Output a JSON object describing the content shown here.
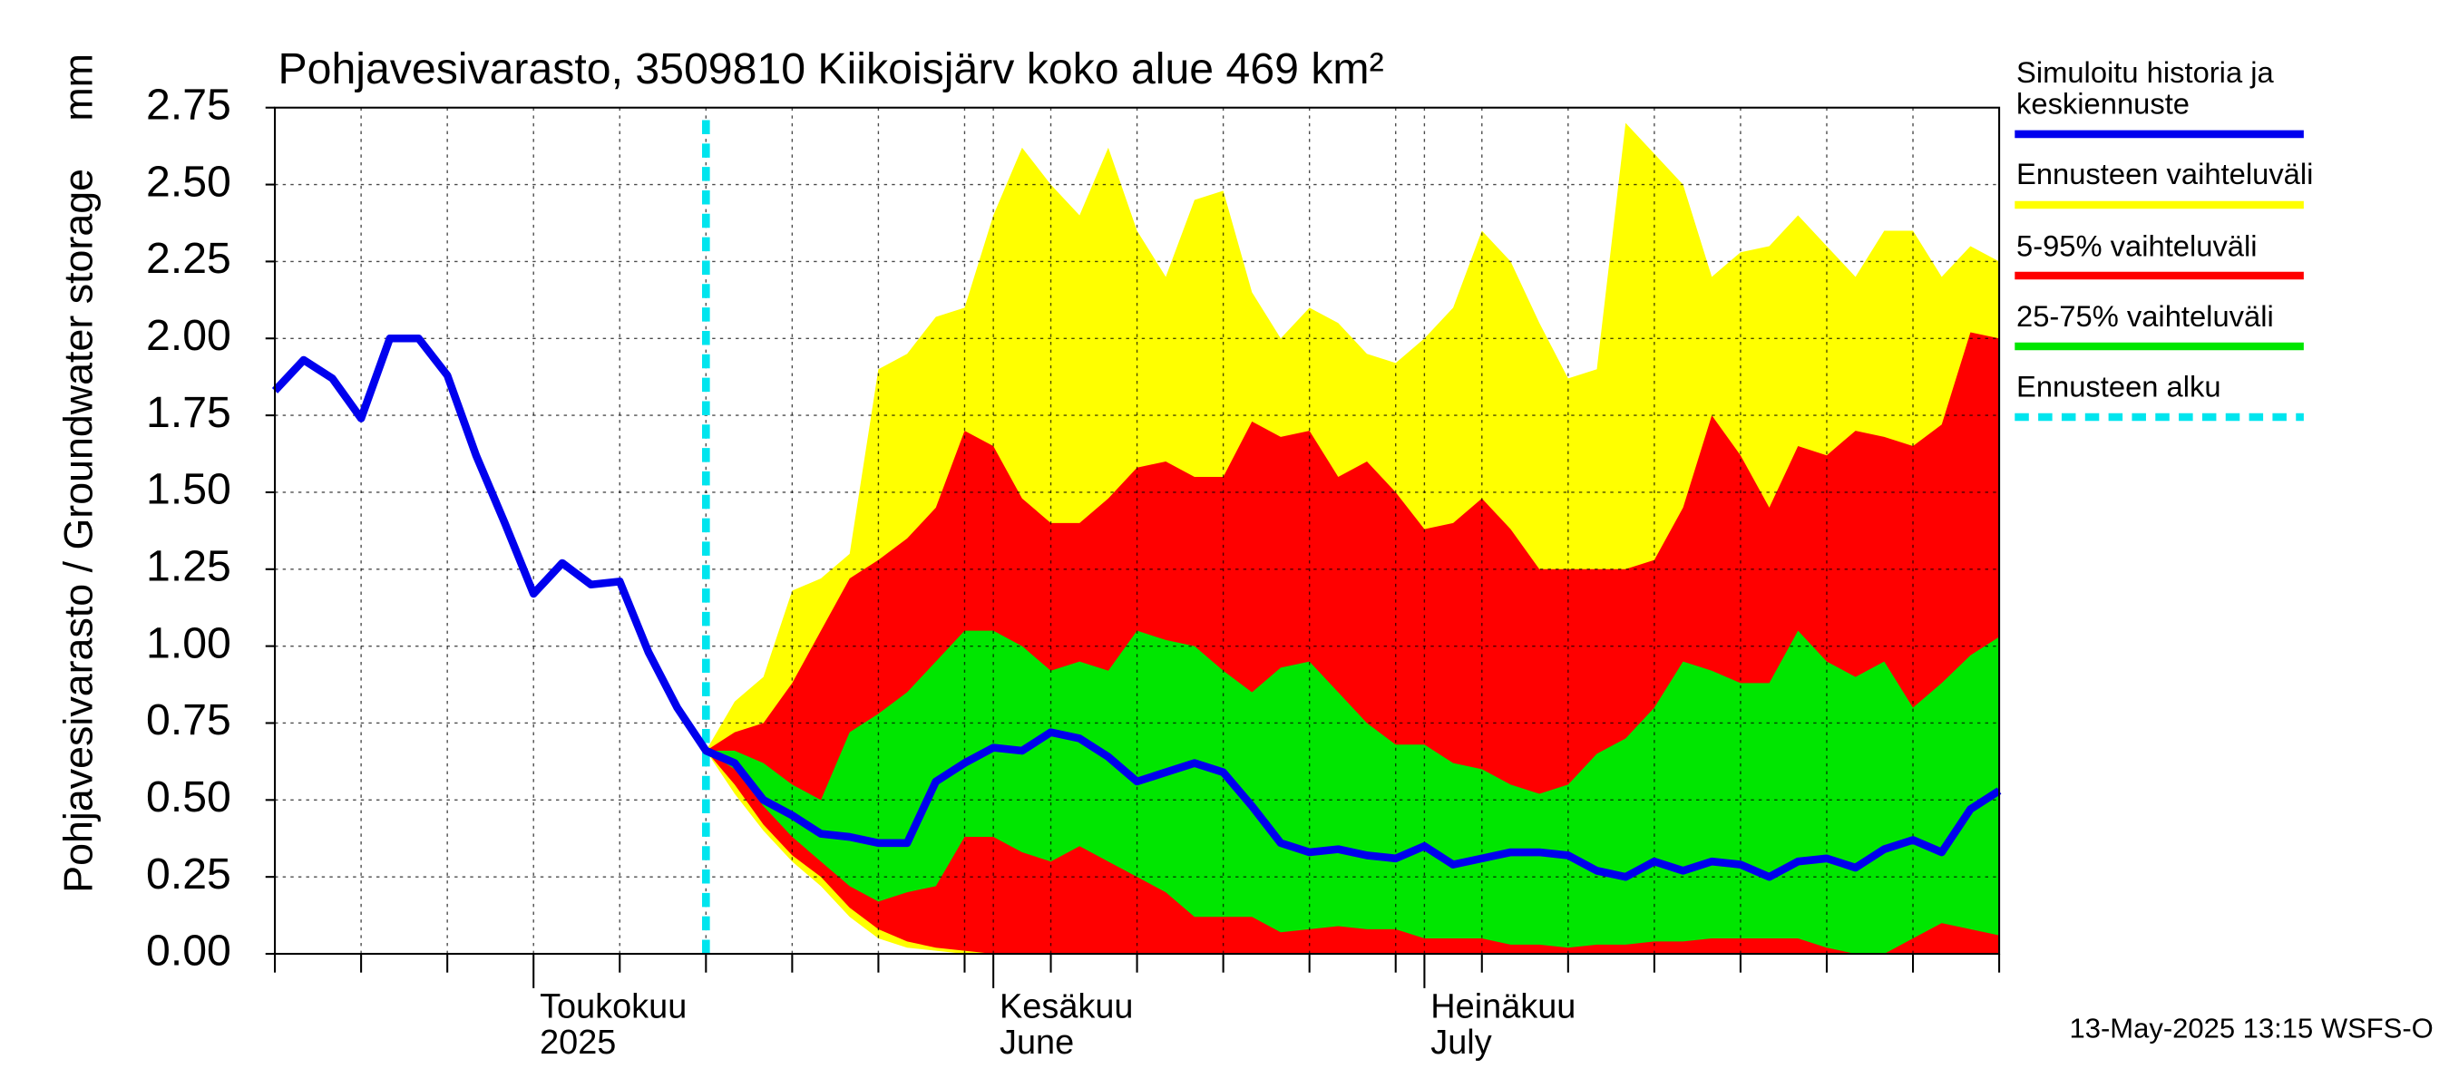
{
  "chart_data": {
    "type": "band-line",
    "title": "Pohjavesivarasto, 3509810 Kiikoisjärv koko alue 469 km²",
    "ylabel": "Pohjavesivarasto / Groundwater storage",
    "unit": "mm",
    "footer": "13-May-2025 13:15 WSFS-O",
    "ylim": [
      0,
      2.75
    ],
    "yticks": [
      {
        "value": 0,
        "label": "0.00"
      },
      0.25,
      {
        "value": 0.5,
        "label": "0.50"
      },
      0.75,
      {
        "value": 1,
        "label": "1.00"
      },
      1.25,
      {
        "value": 1.5,
        "label": "1.50"
      },
      1.75,
      {
        "value": 2,
        "label": "2.00"
      },
      2.25,
      {
        "value": 2.5,
        "label": "2.50"
      },
      2.75
    ],
    "grid": true,
    "categories": [
      null,
      null,
      null,
      null,
      null,
      null,
      null,
      null,
      null,
      "Toukokuu\n2025",
      null,
      null,
      null,
      null,
      null,
      null,
      null,
      null,
      null,
      null,
      null,
      null,
      null,
      null,
      null,
      "Kesäkuu\nJune",
      null,
      null,
      null,
      null,
      null,
      null,
      null,
      null,
      null,
      null,
      null,
      null,
      null,
      null,
      "Heinäkuu\nJuly",
      null,
      null,
      null,
      null,
      null,
      null,
      null,
      null,
      null,
      null,
      null,
      null,
      null,
      null,
      null,
      null,
      null,
      null,
      null,
      null
    ],
    "series": [
      {
        "name": "Simuloitu historia ja\nkeskiennuste",
        "color": "#0000ee",
        "values": [
          1.83,
          1.93,
          1.87,
          1.74,
          2.0,
          2.0,
          1.88,
          1.62,
          1.4,
          1.17,
          1.27,
          1.2,
          1.21,
          0.98,
          0.8,
          0.66,
          0.62,
          0.5,
          0.45,
          0.39,
          0.38,
          0.36,
          0.36,
          0.56,
          0.62,
          0.67,
          0.66,
          0.72,
          0.7,
          0.64,
          0.56,
          0.59,
          0.62,
          0.59,
          0.48,
          0.36,
          0.33,
          0.34,
          0.32,
          0.31,
          0.35,
          0.29,
          0.31,
          0.33,
          0.33,
          0.32,
          0.27,
          0.25,
          0.3,
          0.27,
          0.3,
          0.29,
          0.25,
          0.3,
          0.31,
          0.28,
          0.34,
          0.37,
          0.33,
          0.47,
          0.53
        ]
      }
    ],
    "bands": [
      {
        "name": "Ennusteen vaihteluväli",
        "color": "#ffff00",
        "upper": [
          null,
          null,
          null,
          null,
          null,
          null,
          null,
          null,
          null,
          null,
          null,
          null,
          null,
          null,
          null,
          0.66,
          0.82,
          0.9,
          1.18,
          1.22,
          1.3,
          1.9,
          1.95,
          2.07,
          2.1,
          2.4,
          2.62,
          2.5,
          2.4,
          2.62,
          2.35,
          2.2,
          2.45,
          2.48,
          2.15,
          2.0,
          2.1,
          2.05,
          1.95,
          1.92,
          2.0,
          2.1,
          2.35,
          2.25,
          2.05,
          1.87,
          1.9,
          2.7,
          2.6,
          2.5,
          2.2,
          2.28,
          2.3,
          2.4,
          2.3,
          2.2,
          2.35,
          2.35,
          2.2,
          2.3,
          2.25
        ],
        "lower": [
          null,
          null,
          null,
          null,
          null,
          null,
          null,
          null,
          null,
          null,
          null,
          null,
          null,
          null,
          null,
          0.66,
          0.52,
          0.4,
          0.3,
          0.22,
          0.12,
          0.05,
          0.02,
          0.01,
          0,
          0,
          0,
          0,
          0,
          0,
          0,
          0,
          0,
          0,
          0,
          0,
          0,
          0,
          0,
          0,
          0,
          0,
          0,
          0,
          0,
          0,
          0,
          0,
          0,
          0,
          0,
          0,
          0,
          0,
          0,
          0,
          0,
          0,
          0,
          0,
          0
        ]
      },
      {
        "name": "5-95% vaihteluväli",
        "color": "#ff0000",
        "upper": [
          null,
          null,
          null,
          null,
          null,
          null,
          null,
          null,
          null,
          null,
          null,
          null,
          null,
          null,
          null,
          0.66,
          0.72,
          0.75,
          0.88,
          1.05,
          1.22,
          1.28,
          1.35,
          1.45,
          1.7,
          1.65,
          1.48,
          1.4,
          1.4,
          1.48,
          1.58,
          1.6,
          1.55,
          1.55,
          1.73,
          1.68,
          1.7,
          1.55,
          1.6,
          1.5,
          1.38,
          1.4,
          1.48,
          1.38,
          1.25,
          1.25,
          1.25,
          1.25,
          1.28,
          1.45,
          1.75,
          1.62,
          1.45,
          1.65,
          1.62,
          1.7,
          1.68,
          1.65,
          1.72,
          2.02,
          2.0
        ],
        "lower": [
          null,
          null,
          null,
          null,
          null,
          null,
          null,
          null,
          null,
          null,
          null,
          null,
          null,
          null,
          null,
          0.66,
          0.55,
          0.42,
          0.32,
          0.25,
          0.15,
          0.08,
          0.04,
          0.02,
          0.01,
          0,
          0,
          0,
          0,
          0,
          0,
          0,
          0,
          0,
          0,
          0,
          0,
          0,
          0,
          0,
          0,
          0,
          0,
          0,
          0,
          0,
          0,
          0,
          0,
          0,
          0,
          0,
          0,
          0,
          0,
          0,
          0,
          0,
          0,
          0,
          0
        ]
      },
      {
        "name": "25-75% vaihteluväli",
        "color": "#00e600",
        "upper": [
          null,
          null,
          null,
          null,
          null,
          null,
          null,
          null,
          null,
          null,
          null,
          null,
          null,
          null,
          null,
          0.66,
          0.66,
          0.62,
          0.55,
          0.5,
          0.72,
          0.78,
          0.85,
          0.95,
          1.05,
          1.05,
          1.0,
          0.92,
          0.95,
          0.92,
          1.05,
          1.02,
          1.0,
          0.92,
          0.85,
          0.93,
          0.95,
          0.85,
          0.75,
          0.68,
          0.68,
          0.62,
          0.6,
          0.55,
          0.52,
          0.55,
          0.65,
          0.7,
          0.8,
          0.95,
          0.92,
          0.88,
          0.88,
          1.05,
          0.95,
          0.9,
          0.95,
          0.8,
          0.88,
          0.97,
          1.03
        ],
        "lower": [
          null,
          null,
          null,
          null,
          null,
          null,
          null,
          null,
          null,
          null,
          null,
          null,
          null,
          null,
          null,
          0.66,
          0.6,
          0.48,
          0.38,
          0.3,
          0.22,
          0.17,
          0.2,
          0.22,
          0.38,
          0.38,
          0.33,
          0.3,
          0.35,
          0.3,
          0.25,
          0.2,
          0.12,
          0.12,
          0.12,
          0.07,
          0.08,
          0.09,
          0.08,
          0.08,
          0.05,
          0.05,
          0.05,
          0.03,
          0.03,
          0.02,
          0.03,
          0.03,
          0.04,
          0.04,
          0.05,
          0.05,
          0.05,
          0.05,
          0.02,
          0.0,
          0.0,
          0.05,
          0.1,
          0.08,
          0.06
        ]
      }
    ],
    "forecast_start": {
      "name": "Ennusteen alku",
      "color": "#00e5ee"
    }
  }
}
